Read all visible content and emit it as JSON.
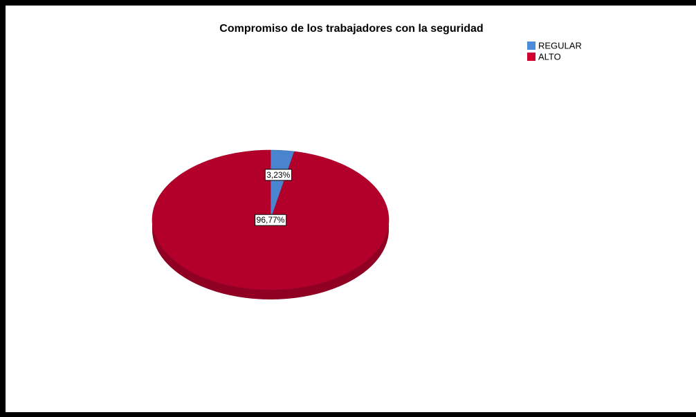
{
  "chart_data": {
    "type": "pie",
    "title": "Compromiso de los trabajadores con la seguridad",
    "categories": [
      "REGULAR",
      "ALTO"
    ],
    "values": [
      3.23,
      96.77
    ],
    "value_labels": [
      "3,23%",
      "96,77%"
    ],
    "colors": [
      "#4a84cf",
      "#b3002b"
    ],
    "legend": "top-right"
  }
}
